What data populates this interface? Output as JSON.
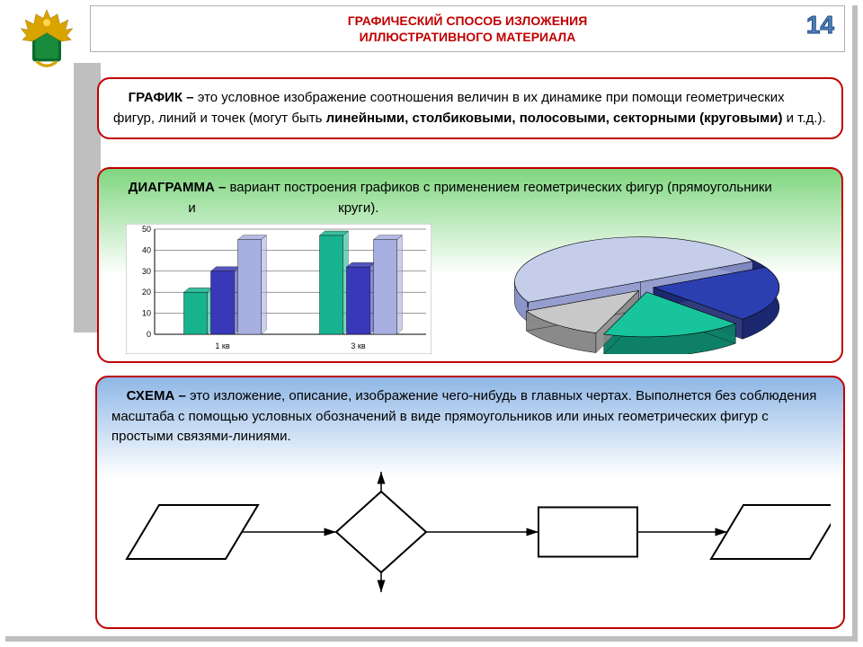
{
  "header": {
    "title_line1": "ГРАФИЧЕСКИЙ СПОСОБ ИЗЛОЖЕНИЯ",
    "title_line2": "ИЛЛЮСТРАТИВНОГО МАТЕРИАЛА",
    "page_number": "14",
    "title_color": "#c00000",
    "number_color": "#4f81bd"
  },
  "card1": {
    "term": "ГРАФИК – ",
    "text_a": "это условное изображение соотношения величин в их динамике при помощи геометрических фигур, линий и точек (могут быть ",
    "bold": "линейными, столбиковыми, полосовыми, секторными (круговыми)",
    "text_b": " и т.д.).",
    "border_color": "#c00000"
  },
  "card2": {
    "term": "ДИАГРАММА – ",
    "text_a": "вариант построения графиков с применением геометрических фигур (прямоугольники",
    "mid": "и",
    "text_b": "круги).",
    "bar_chart": {
      "type": "bar",
      "y_ticks": [
        0,
        10,
        20,
        30,
        40,
        50
      ],
      "groups": [
        {
          "label": "1 кв",
          "values": [
            20,
            30,
            45
          ]
        },
        {
          "label": "3 кв",
          "values": [
            47,
            32,
            45
          ]
        }
      ],
      "colors": [
        "#17b38e",
        "#3838b8",
        "#a8b0e2"
      ],
      "bg": "#ffffff",
      "grid": "#000000",
      "ymax": 50
    },
    "pie_chart": {
      "type": "pie_3d_exploded",
      "slices": [
        {
          "value": 50,
          "color_top": "#c5cdeb",
          "color_side": "#8a94c9"
        },
        {
          "value": 20,
          "color_top": "#2b3fb0",
          "color_side": "#1b2870"
        },
        {
          "value": 18,
          "color_top": "#18c49b",
          "color_side": "#0f8068"
        },
        {
          "value": 12,
          "color_top": "#c8c8c8",
          "color_side": "#8a8a8a"
        }
      ]
    },
    "border_color": "#c00000"
  },
  "card3": {
    "term": "СХЕМА – ",
    "text": "это изложение, описание, изображение чего-нибудь в главных чертах. Выполнется без соблюдения масштаба с помощью условных обозначений в виде прямоугольников или иных геометрических фигур с простыми связями-линиями.",
    "flowchart": {
      "type": "flowchart",
      "stroke": "#000000",
      "fill": "#ffffff",
      "nodes": [
        {
          "shape": "parallelogram"
        },
        {
          "shape": "diamond"
        },
        {
          "shape": "rect"
        },
        {
          "shape": "parallelogram"
        }
      ]
    },
    "border_color": "#c00000"
  },
  "emblem_colors": {
    "gold": "#d9a300",
    "green": "#0a6b2c"
  }
}
